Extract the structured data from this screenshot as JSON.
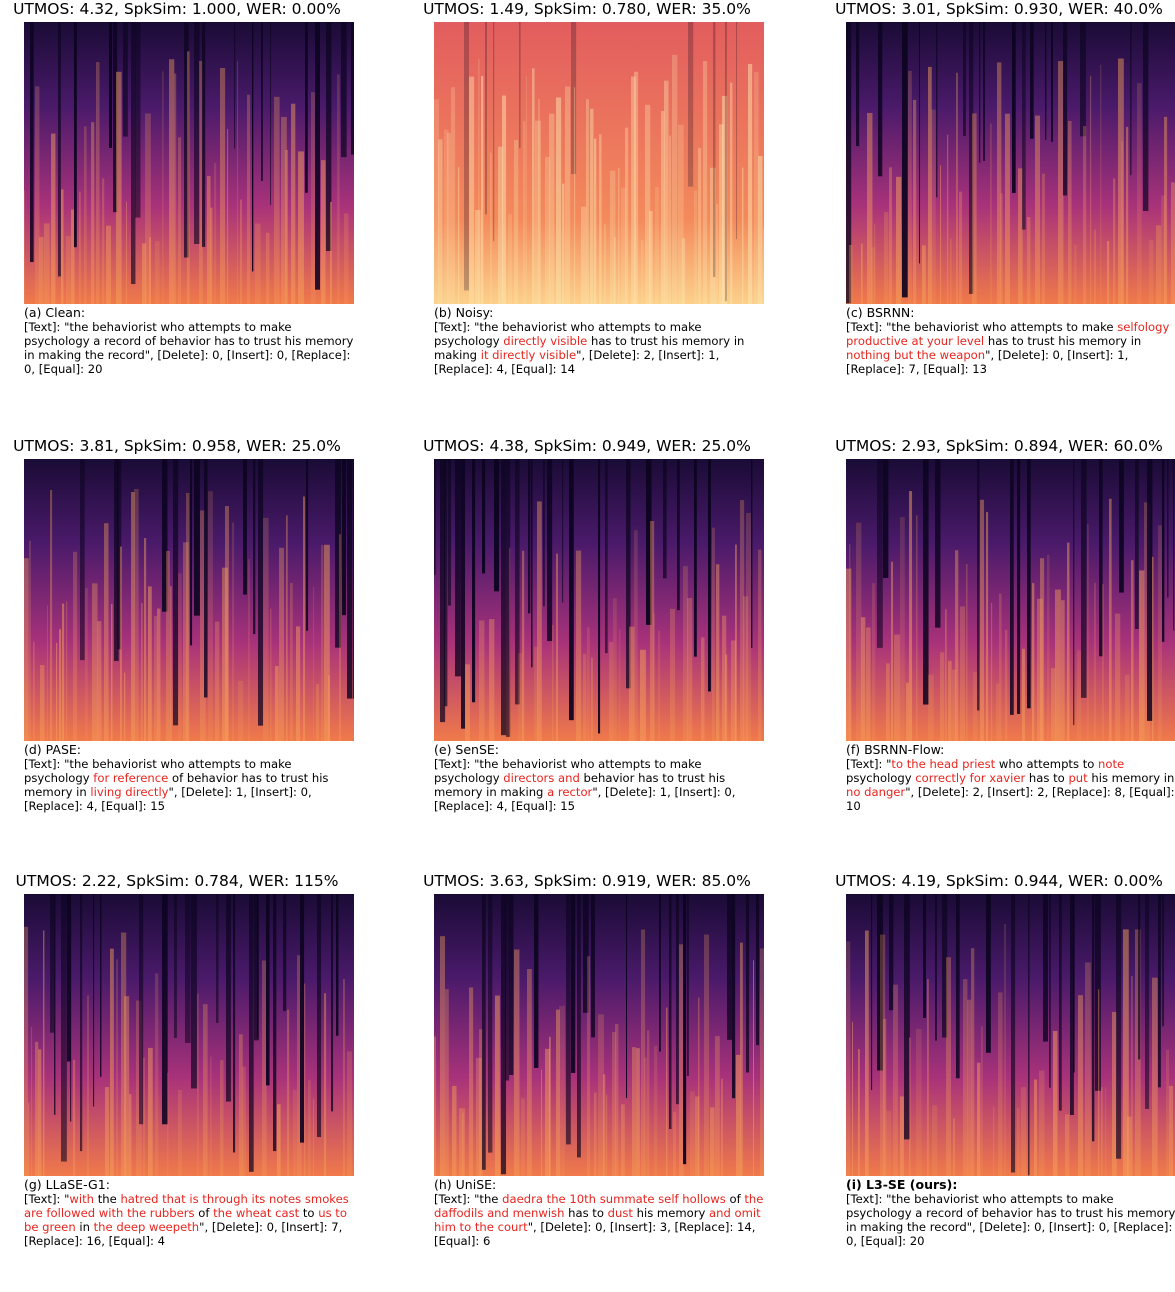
{
  "panels": [
    {
      "header": "UTMOS: 4.32, SpkSim: 1.000, WER: 0.00%",
      "label": "(a) Clean:",
      "caption": [
        {
          "text": "[Text]: \"the behaviorist who attempts to make psychology a record of behavior has to trust his memory in making the record\", [Delete]: 0, [Insert]: 0, [Replace]: 0, [Equal]: 20",
          "highlight": false
        }
      ]
    },
    {
      "header": "UTMOS: 1.49, SpkSim: 0.780, WER: 35.0%",
      "label": "(b) Noisy:",
      "caption": [
        {
          "text": "[Text]: \"the behaviorist who attempts to make psychology ",
          "highlight": false
        },
        {
          "text": "directly visible",
          "highlight": true
        },
        {
          "text": " has to trust his memory in making ",
          "highlight": false
        },
        {
          "text": "it directly visible",
          "highlight": true
        },
        {
          "text": "\", [Delete]: 2, [Insert]: 1, [Replace]: 4, [Equal]: 14",
          "highlight": false
        }
      ]
    },
    {
      "header": "UTMOS: 3.01, SpkSim: 0.930, WER: 40.0%",
      "label": "(c) BSRNN:",
      "caption": [
        {
          "text": "[Text]: \"the behaviorist who attempts to make ",
          "highlight": false
        },
        {
          "text": "selfology productive at your level",
          "highlight": true
        },
        {
          "text": " has to trust his memory in ",
          "highlight": false
        },
        {
          "text": "nothing but the weapon",
          "highlight": true
        },
        {
          "text": "\", [Delete]: 0, [Insert]: 1, [Replace]: 7, [Equal]: 13",
          "highlight": false
        }
      ]
    },
    {
      "header": "UTMOS: 3.81, SpkSim: 0.958, WER: 25.0%",
      "label": "(d) PASE:",
      "caption": [
        {
          "text": "[Text]: \"the behaviorist who attempts to make psychology ",
          "highlight": false
        },
        {
          "text": "for reference",
          "highlight": true
        },
        {
          "text": " of behavior has to trust his memory in ",
          "highlight": false
        },
        {
          "text": "living directly",
          "highlight": true
        },
        {
          "text": "\", [Delete]: 1, [Insert]: 0, [Replace]: 4, [Equal]: 15",
          "highlight": false
        }
      ]
    },
    {
      "header": "UTMOS: 4.38, SpkSim: 0.949, WER: 25.0%",
      "label": "(e) SenSE:",
      "caption": [
        {
          "text": "[Text]: \"the behaviorist who attempts to make psychology ",
          "highlight": false
        },
        {
          "text": "directors and",
          "highlight": true
        },
        {
          "text": " behavior has to trust his memory in making ",
          "highlight": false
        },
        {
          "text": "a rector",
          "highlight": true
        },
        {
          "text": "\", [Delete]: 1, [Insert]: 0, [Replace]: 4, [Equal]: 15",
          "highlight": false
        }
      ]
    },
    {
      "header": "UTMOS: 2.93, SpkSim: 0.894, WER: 60.0%",
      "label": "(f) BSRNN-Flow:",
      "caption": [
        {
          "text": "[Text]: \"",
          "highlight": false
        },
        {
          "text": "to the head priest",
          "highlight": true
        },
        {
          "text": " who attempts to ",
          "highlight": false
        },
        {
          "text": "note",
          "highlight": true
        },
        {
          "text": " psychology ",
          "highlight": false
        },
        {
          "text": "correctly for xavier",
          "highlight": true
        },
        {
          "text": " has to ",
          "highlight": false
        },
        {
          "text": "put",
          "highlight": true
        },
        {
          "text": " his memory in ",
          "highlight": false
        },
        {
          "text": "no danger",
          "highlight": true
        },
        {
          "text": "\", [Delete]: 2, [Insert]: 2, [Replace]: 8, [Equal]: 10",
          "highlight": false
        }
      ]
    },
    {
      "header": "UTMOS: 2.22, SpkSim: 0.784, WER: 115%",
      "label": "(g) LLaSE-G1:",
      "caption": [
        {
          "text": "[Text]: \"",
          "highlight": false
        },
        {
          "text": "with",
          "highlight": true
        },
        {
          "text": " the ",
          "highlight": false
        },
        {
          "text": "hatred that is through its notes smokes are followed with the rubbers",
          "highlight": true
        },
        {
          "text": " of ",
          "highlight": false
        },
        {
          "text": "the wheat cast",
          "highlight": true
        },
        {
          "text": " to ",
          "highlight": false
        },
        {
          "text": "us to be green",
          "highlight": true
        },
        {
          "text": " in ",
          "highlight": false
        },
        {
          "text": "the deep weepeth",
          "highlight": true
        },
        {
          "text": "\", [Delete]: 0, [Insert]: 7, [Replace]: 16, [Equal]: 4",
          "highlight": false
        }
      ]
    },
    {
      "header": "UTMOS: 3.63, SpkSim: 0.919, WER: 85.0%",
      "label": "(h) UniSE:",
      "caption": [
        {
          "text": "[Text]: \"the ",
          "highlight": false
        },
        {
          "text": "daedra the 10th summate self hollows",
          "highlight": true
        },
        {
          "text": " of ",
          "highlight": false
        },
        {
          "text": "the daffodils and menwish",
          "highlight": true
        },
        {
          "text": " has to ",
          "highlight": false
        },
        {
          "text": "dust",
          "highlight": true
        },
        {
          "text": " his memory ",
          "highlight": false
        },
        {
          "text": "and omit him to the court",
          "highlight": true
        },
        {
          "text": "\", [Delete]: 0, [Insert]: 3, [Replace]: 14, [Equal]: 6",
          "highlight": false
        }
      ]
    },
    {
      "header": "UTMOS: 4.19, SpkSim: 0.944, WER: 0.00%",
      "label": "(i) L3-SE (ours):",
      "label_bold": true,
      "caption": [
        {
          "text": "[Text]: \"the behaviorist who attempts to make psychology a record of behavior has to trust his memory in making the record\", [Delete]: 0, [Insert]: 0, [Replace]: 0, [Equal]: 20",
          "highlight": false
        }
      ]
    }
  ]
}
